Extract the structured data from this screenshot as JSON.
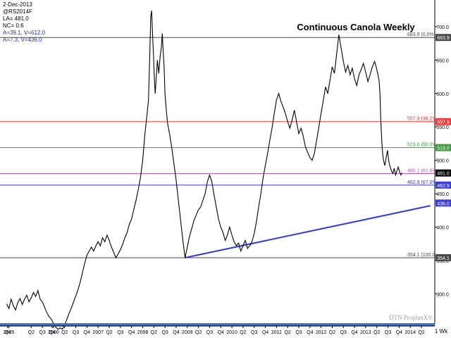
{
  "chart_data": {
    "type": "line",
    "title": "Continuous Canola Weekly",
    "watermark": "DTN ProphetX®",
    "y_unit_label": "1 Wk",
    "ylim": [
      255,
      740
    ],
    "y_ticks": [
      300,
      350,
      400,
      450,
      500,
      550,
      600,
      650,
      700
    ],
    "info_panel": [
      "2-Dec-2013",
      "@RS2014F",
      "LA= 481.0",
      "NC= 0.6",
      "A=39.1, V=612.0",
      "A=7.3, V=436.0"
    ],
    "x_labels": [
      {
        "x": 2004.97,
        "text": "Q4"
      },
      {
        "x": 2005.0,
        "text": "2005"
      },
      {
        "x": 2005.5,
        "text": "Q2"
      },
      {
        "x": 2005.75,
        "text": "Q3"
      },
      {
        "x": 2005.97,
        "text": "Q4"
      },
      {
        "x": 2006.0,
        "text": "2006"
      },
      {
        "x": 2006.25,
        "text": "Q2"
      },
      {
        "x": 2006.5,
        "text": "Q3"
      },
      {
        "x": 2006.75,
        "text": "Q4"
      },
      {
        "x": 2007.0,
        "text": "2007"
      },
      {
        "x": 2007.25,
        "text": "Q2"
      },
      {
        "x": 2007.5,
        "text": "Q3"
      },
      {
        "x": 2007.75,
        "text": "Q4"
      },
      {
        "x": 2008.0,
        "text": "2008"
      },
      {
        "x": 2008.25,
        "text": "Q2"
      },
      {
        "x": 2008.5,
        "text": "Q3"
      },
      {
        "x": 2008.75,
        "text": "Q4"
      },
      {
        "x": 2009.0,
        "text": "2009"
      },
      {
        "x": 2009.25,
        "text": "Q2"
      },
      {
        "x": 2009.5,
        "text": "Q3"
      },
      {
        "x": 2009.75,
        "text": "Q4"
      },
      {
        "x": 2010.0,
        "text": "2010"
      },
      {
        "x": 2010.25,
        "text": "Q2"
      },
      {
        "x": 2010.5,
        "text": "Q3"
      },
      {
        "x": 2010.75,
        "text": "Q4"
      },
      {
        "x": 2011.0,
        "text": "2011"
      },
      {
        "x": 2011.25,
        "text": "Q2"
      },
      {
        "x": 2011.5,
        "text": "Q3"
      },
      {
        "x": 2011.75,
        "text": "Q4"
      },
      {
        "x": 2012.0,
        "text": "2012"
      },
      {
        "x": 2012.25,
        "text": "Q2"
      },
      {
        "x": 2012.5,
        "text": "Q3"
      },
      {
        "x": 2012.75,
        "text": "Q4"
      },
      {
        "x": 2013.0,
        "text": "2013"
      },
      {
        "x": 2013.25,
        "text": "Q2"
      },
      {
        "x": 2013.5,
        "text": "Q3"
      },
      {
        "x": 2013.75,
        "text": "Q4"
      },
      {
        "x": 2014.0,
        "text": "2014"
      },
      {
        "x": 2014.25,
        "text": "Q2"
      }
    ],
    "series": [
      {
        "color": "#000000",
        "points": [
          [
            2004.95,
            285
          ],
          [
            2005.0,
            278
          ],
          [
            2005.05,
            292
          ],
          [
            2005.1,
            282
          ],
          [
            2005.15,
            276
          ],
          [
            2005.2,
            287
          ],
          [
            2005.25,
            293
          ],
          [
            2005.3,
            284
          ],
          [
            2005.35,
            292
          ],
          [
            2005.4,
            298
          ],
          [
            2005.45,
            288
          ],
          [
            2005.5,
            294
          ],
          [
            2005.55,
            302
          ],
          [
            2005.6,
            296
          ],
          [
            2005.65,
            305
          ],
          [
            2005.7,
            292
          ],
          [
            2005.75,
            288
          ],
          [
            2005.8,
            280
          ],
          [
            2005.85,
            272
          ],
          [
            2005.9,
            266
          ],
          [
            2005.95,
            262
          ],
          [
            2006.0,
            256
          ],
          [
            2006.05,
            250
          ],
          [
            2006.1,
            247
          ],
          [
            2006.15,
            249
          ],
          [
            2006.2,
            247
          ],
          [
            2006.25,
            254
          ],
          [
            2006.3,
            262
          ],
          [
            2006.35,
            271
          ],
          [
            2006.4,
            279
          ],
          [
            2006.45,
            288
          ],
          [
            2006.5,
            297
          ],
          [
            2006.55,
            306
          ],
          [
            2006.6,
            318
          ],
          [
            2006.65,
            332
          ],
          [
            2006.7,
            346
          ],
          [
            2006.75,
            358
          ],
          [
            2006.8,
            364
          ],
          [
            2006.85,
            370
          ],
          [
            2006.9,
            364
          ],
          [
            2006.95,
            372
          ],
          [
            2007.0,
            378
          ],
          [
            2007.05,
            372
          ],
          [
            2007.1,
            384
          ],
          [
            2007.15,
            378
          ],
          [
            2007.2,
            388
          ],
          [
            2007.25,
            380
          ],
          [
            2007.3,
            370
          ],
          [
            2007.35,
            362
          ],
          [
            2007.4,
            354
          ],
          [
            2007.45,
            360
          ],
          [
            2007.5,
            366
          ],
          [
            2007.55,
            374
          ],
          [
            2007.6,
            384
          ],
          [
            2007.65,
            392
          ],
          [
            2007.7,
            404
          ],
          [
            2007.75,
            412
          ],
          [
            2007.8,
            426
          ],
          [
            2007.85,
            440
          ],
          [
            2007.9,
            456
          ],
          [
            2007.95,
            474
          ],
          [
            2008.0,
            500
          ],
          [
            2008.05,
            540
          ],
          [
            2008.1,
            570
          ],
          [
            2008.13,
            590
          ],
          [
            2008.16,
            660
          ],
          [
            2008.18,
            715
          ],
          [
            2008.2,
            724
          ],
          [
            2008.22,
            690
          ],
          [
            2008.24,
            660
          ],
          [
            2008.26,
            625
          ],
          [
            2008.28,
            600
          ],
          [
            2008.3,
            620
          ],
          [
            2008.33,
            650
          ],
          [
            2008.36,
            630
          ],
          [
            2008.39,
            655
          ],
          [
            2008.42,
            670
          ],
          [
            2008.44,
            690
          ],
          [
            2008.46,
            662
          ],
          [
            2008.48,
            640
          ],
          [
            2008.5,
            600
          ],
          [
            2008.53,
            575
          ],
          [
            2008.56,
            555
          ],
          [
            2008.6,
            540
          ],
          [
            2008.65,
            520
          ],
          [
            2008.7,
            495
          ],
          [
            2008.75,
            470
          ],
          [
            2008.8,
            440
          ],
          [
            2008.85,
            410
          ],
          [
            2008.9,
            380
          ],
          [
            2008.95,
            354
          ],
          [
            2009.0,
            370
          ],
          [
            2009.05,
            386
          ],
          [
            2009.1,
            398
          ],
          [
            2009.15,
            410
          ],
          [
            2009.2,
            418
          ],
          [
            2009.25,
            426
          ],
          [
            2009.3,
            430
          ],
          [
            2009.35,
            440
          ],
          [
            2009.4,
            450
          ],
          [
            2009.45,
            468
          ],
          [
            2009.5,
            478
          ],
          [
            2009.55,
            468
          ],
          [
            2009.6,
            448
          ],
          [
            2009.65,
            430
          ],
          [
            2009.7,
            412
          ],
          [
            2009.75,
            400
          ],
          [
            2009.8,
            392
          ],
          [
            2009.85,
            380
          ],
          [
            2009.9,
            388
          ],
          [
            2009.95,
            400
          ],
          [
            2010.0,
            388
          ],
          [
            2010.05,
            378
          ],
          [
            2010.1,
            372
          ],
          [
            2010.15,
            376
          ],
          [
            2010.2,
            364
          ],
          [
            2010.25,
            372
          ],
          [
            2010.3,
            380
          ],
          [
            2010.35,
            368
          ],
          [
            2010.4,
            372
          ],
          [
            2010.45,
            378
          ],
          [
            2010.5,
            390
          ],
          [
            2010.55,
            408
          ],
          [
            2010.6,
            430
          ],
          [
            2010.65,
            450
          ],
          [
            2010.7,
            474
          ],
          [
            2010.75,
            492
          ],
          [
            2010.8,
            510
          ],
          [
            2010.85,
            530
          ],
          [
            2010.9,
            548
          ],
          [
            2010.95,
            570
          ],
          [
            2011.0,
            590
          ],
          [
            2011.05,
            600
          ],
          [
            2011.1,
            588
          ],
          [
            2011.15,
            580
          ],
          [
            2011.2,
            570
          ],
          [
            2011.25,
            558
          ],
          [
            2011.3,
            548
          ],
          [
            2011.35,
            560
          ],
          [
            2011.4,
            575
          ],
          [
            2011.45,
            558
          ],
          [
            2011.5,
            540
          ],
          [
            2011.55,
            548
          ],
          [
            2011.6,
            536
          ],
          [
            2011.65,
            520
          ],
          [
            2011.7,
            512
          ],
          [
            2011.75,
            504
          ],
          [
            2011.8,
            500
          ],
          [
            2011.85,
            510
          ],
          [
            2011.9,
            530
          ],
          [
            2011.95,
            550
          ],
          [
            2012.0,
            570
          ],
          [
            2012.05,
            590
          ],
          [
            2012.1,
            610
          ],
          [
            2012.15,
            600
          ],
          [
            2012.2,
            620
          ],
          [
            2012.25,
            640
          ],
          [
            2012.3,
            630
          ],
          [
            2012.35,
            660
          ],
          [
            2012.4,
            688
          ],
          [
            2012.45,
            668
          ],
          [
            2012.5,
            648
          ],
          [
            2012.55,
            632
          ],
          [
            2012.6,
            642
          ],
          [
            2012.65,
            628
          ],
          [
            2012.7,
            638
          ],
          [
            2012.75,
            622
          ],
          [
            2012.8,
            612
          ],
          [
            2012.85,
            628
          ],
          [
            2012.9,
            636
          ],
          [
            2012.95,
            645
          ],
          [
            2013.0,
            632
          ],
          [
            2013.05,
            618
          ],
          [
            2013.1,
            628
          ],
          [
            2013.15,
            640
          ],
          [
            2013.2,
            648
          ],
          [
            2013.25,
            636
          ],
          [
            2013.3,
            620
          ],
          [
            2013.32,
            600
          ],
          [
            2013.34,
            560
          ],
          [
            2013.36,
            530
          ],
          [
            2013.38,
            510
          ],
          [
            2013.4,
            500
          ],
          [
            2013.43,
            492
          ],
          [
            2013.46,
            504
          ],
          [
            2013.49,
            515
          ],
          [
            2013.52,
            498
          ],
          [
            2013.55,
            490
          ],
          [
            2013.58,
            484
          ],
          [
            2013.61,
            480
          ],
          [
            2013.64,
            488
          ],
          [
            2013.67,
            478
          ],
          [
            2013.7,
            484
          ],
          [
            2013.73,
            490
          ],
          [
            2013.76,
            483
          ],
          [
            2013.79,
            478
          ],
          [
            2013.82,
            481
          ]
        ]
      }
    ],
    "fib_levels": [
      {
        "value": 683.9,
        "label": "683.9 (0.0%)",
        "color": "#4a4a4a"
      },
      {
        "value": 557.9,
        "label": "557.9 (38.2%)",
        "color": "#ef3a3a"
      },
      {
        "value": 519.0,
        "label": "519.0 (50.0%)",
        "color": "#3f9a3f"
      },
      {
        "value": 480.1,
        "label": "480.1 (61.8%)",
        "color": "#c058c0"
      },
      {
        "value": 462.9,
        "label": "462.9 (67.0%)",
        "color": "#3b3bd6"
      },
      {
        "value": 354.1,
        "label": "354.1 (100.0%)",
        "color": "#4a4a4a"
      }
    ],
    "right_markers": [
      {
        "value": 683.9,
        "text": "683.9",
        "bg": "#4a4a4a"
      },
      {
        "value": 557.9,
        "text": "557.9",
        "bg": "#ef3a3a"
      },
      {
        "value": 519.0,
        "text": "519.0",
        "bg": "#3f9a3f"
      },
      {
        "value": 481.0,
        "text": "481.0",
        "bg": "#000000"
      },
      {
        "value": 462.9,
        "text": "462.9",
        "bg": "#3b3bd6"
      },
      {
        "value": 436.0,
        "text": "436.0",
        "bg": "#3b3bd6"
      },
      {
        "value": 354.1,
        "text": "354.1",
        "bg": "#4a4a4a"
      }
    ],
    "trendline": {
      "x1": 2008.95,
      "y1": 354.1,
      "x2": 2014.45,
      "y2": 432,
      "color": "#2f3cd8"
    }
  }
}
